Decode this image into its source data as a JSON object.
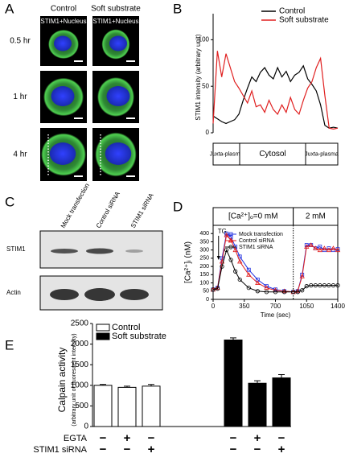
{
  "panels": {
    "a": {
      "label": "A",
      "columns": [
        "Control",
        "Soft substrate"
      ],
      "stain_labels": [
        "STIM1+Nucleus",
        "STIM1+Nucleus"
      ],
      "rows": [
        "0.5 hr",
        "1 hr",
        "4 hr"
      ]
    },
    "c": {
      "label": "C",
      "lanes": [
        "Mock transfection",
        "Control siRNA",
        "STIM1 siRNA"
      ],
      "bands": [
        "STIM1",
        "Actin"
      ]
    }
  },
  "chart_data": [
    {
      "type": "line",
      "panel_label": "B",
      "y_label": "STIM1 intensity (arbitrary unit)",
      "ylim": [
        0,
        128
      ],
      "yticks": [
        0,
        50,
        100
      ],
      "regions": [
        "Juxta-plasma",
        "Cytosol",
        "Juxta-plasma"
      ],
      "legend": "top-right",
      "series": [
        {
          "name": "Control",
          "color": "#000000",
          "values": [
            18,
            15,
            12,
            10,
            12,
            14,
            20,
            35,
            48,
            60,
            55,
            65,
            70,
            62,
            58,
            70,
            60,
            66,
            55,
            62,
            65,
            72,
            58,
            52,
            45,
            30,
            8,
            5,
            6,
            5
          ]
        },
        {
          "name": "Soft substrate",
          "color": "#e02020",
          "values": [
            10,
            88,
            60,
            85,
            70,
            55,
            48,
            40,
            32,
            45,
            28,
            30,
            22,
            35,
            25,
            20,
            30,
            22,
            38,
            25,
            20,
            35,
            48,
            55,
            70,
            80,
            40,
            5,
            4,
            5
          ]
        }
      ]
    },
    {
      "type": "scatter-line",
      "panel_label": "D",
      "x_label": "Time (sec)",
      "y_label": "[Ca²⁺]ᵢ (nM)",
      "phases": [
        "[Ca²⁺]ₒ=0 mM",
        "2 mM"
      ],
      "phase_boundary": 900,
      "annotation": "TG",
      "annotation_x": 70,
      "xlim": [
        0,
        1400
      ],
      "xticks": [
        0,
        350,
        700,
        1050,
        1400
      ],
      "ylim": [
        0,
        450
      ],
      "yticks": [
        0,
        50,
        100,
        150,
        200,
        250,
        300,
        350,
        400
      ],
      "legend": "top-left",
      "x": [
        0,
        50,
        100,
        150,
        200,
        250,
        300,
        400,
        500,
        600,
        700,
        800,
        900,
        950,
        1000,
        1050,
        1100,
        1150,
        1200,
        1250,
        1300,
        1350,
        1400
      ],
      "series": [
        {
          "name": "Mock transfection",
          "color": "#2030e0",
          "marker": "square",
          "values": [
            60,
            70,
            250,
            400,
            380,
            320,
            260,
            180,
            120,
            80,
            60,
            50,
            45,
            50,
            150,
            330,
            330,
            310,
            320,
            300,
            310,
            300,
            305
          ]
        },
        {
          "name": "Control siRNA",
          "color": "#e02020",
          "marker": "triangle",
          "values": [
            60,
            70,
            230,
            390,
            360,
            300,
            230,
            150,
            100,
            70,
            55,
            50,
            45,
            50,
            140,
            320,
            330,
            310,
            300,
            310,
            300,
            310,
            300
          ]
        },
        {
          "name": "STIM1 siRNA",
          "color": "#000000",
          "marker": "circle",
          "values": [
            60,
            65,
            200,
            300,
            240,
            170,
            120,
            70,
            50,
            45,
            45,
            45,
            45,
            45,
            55,
            80,
            85,
            85,
            85,
            85,
            85,
            85,
            85
          ]
        }
      ]
    },
    {
      "type": "bar",
      "panel_label": "E",
      "y_label": "Calpain activity",
      "y_sublabel": "(arbitrary unit of fluorescent intensity)",
      "ylim": [
        0,
        2500
      ],
      "yticks": [
        0,
        500,
        1000,
        1500,
        2000,
        2500
      ],
      "legend": "top-left",
      "series": [
        {
          "name": "Control",
          "color": "#ffffff",
          "values": [
            1000,
            950,
            980
          ],
          "errors": [
            20,
            30,
            40
          ]
        },
        {
          "name": "Soft substrate",
          "color": "#000000",
          "values": [
            2100,
            1050,
            1180
          ],
          "errors": [
            50,
            60,
            80
          ]
        }
      ],
      "conditions": [
        {
          "name": "EGTA",
          "marks": [
            "−",
            "+",
            "−",
            "−",
            "+",
            "−"
          ]
        },
        {
          "name": "STIM1 siRNA",
          "marks": [
            "−",
            "−",
            "+",
            "−",
            "−",
            "+"
          ]
        }
      ]
    }
  ]
}
